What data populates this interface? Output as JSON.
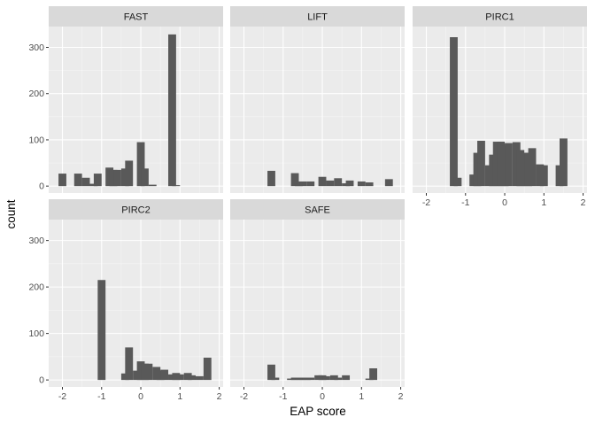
{
  "colors": {
    "panel_background": "#ebebeb",
    "grid_major": "#ffffff",
    "strip_background": "#d9d9d9",
    "bar_fill": "#595959",
    "text": "#1a1a1a",
    "tick_text": "#4d4d4d"
  },
  "chart_data": {
    "type": "bar",
    "style": "faceted histogram (facet_wrap, 3 columns, shared y-axis)",
    "xlabel": "EAP score",
    "ylabel": "count",
    "xlim": [
      -2.35,
      2.1
    ],
    "ylim": [
      -15,
      345
    ],
    "x_ticks": [
      -2,
      -1,
      0,
      1,
      2
    ],
    "y_ticks": [
      0,
      100,
      200,
      300
    ],
    "bin_width": 0.2,
    "grid": true,
    "facets": [
      {
        "name": "FAST",
        "bins": [
          {
            "x": -2.0,
            "count": 27
          },
          {
            "x": -1.6,
            "count": 27
          },
          {
            "x": -1.4,
            "count": 18
          },
          {
            "x": -1.2,
            "count": 5
          },
          {
            "x": -1.1,
            "count": 27
          },
          {
            "x": -0.8,
            "count": 40
          },
          {
            "x": -0.7,
            "count": 35
          },
          {
            "x": -0.6,
            "count": 35
          },
          {
            "x": -0.4,
            "count": 38
          },
          {
            "x": -0.3,
            "count": 55
          },
          {
            "x": 0.0,
            "count": 95
          },
          {
            "x": 0.1,
            "count": 38
          },
          {
            "x": 0.3,
            "count": 3
          },
          {
            "x": 0.8,
            "count": 328
          },
          {
            "x": 0.9,
            "count": 2
          }
        ]
      },
      {
        "name": "LIFT",
        "bins": [
          {
            "x": -1.3,
            "count": 33
          },
          {
            "x": -0.7,
            "count": 28
          },
          {
            "x": -0.6,
            "count": 5
          },
          {
            "x": -0.5,
            "count": 10
          },
          {
            "x": -0.3,
            "count": 10
          },
          {
            "x": 0.0,
            "count": 20
          },
          {
            "x": 0.2,
            "count": 12
          },
          {
            "x": 0.4,
            "count": 17
          },
          {
            "x": 0.6,
            "count": 6
          },
          {
            "x": 0.7,
            "count": 12
          },
          {
            "x": 1.0,
            "count": 10
          },
          {
            "x": 1.2,
            "count": 8
          },
          {
            "x": 1.7,
            "count": 15
          }
        ]
      },
      {
        "name": "PIRC1",
        "bins": [
          {
            "x": -1.3,
            "count": 322
          },
          {
            "x": -1.2,
            "count": 18
          },
          {
            "x": -0.8,
            "count": 25
          },
          {
            "x": -0.7,
            "count": 72
          },
          {
            "x": -0.6,
            "count": 98
          },
          {
            "x": -0.4,
            "count": 45
          },
          {
            "x": -0.3,
            "count": 68
          },
          {
            "x": -0.2,
            "count": 96
          },
          {
            "x": -0.1,
            "count": 96
          },
          {
            "x": 0.0,
            "count": 88
          },
          {
            "x": 0.1,
            "count": 93
          },
          {
            "x": 0.3,
            "count": 95
          },
          {
            "x": 0.4,
            "count": 78
          },
          {
            "x": 0.5,
            "count": 72
          },
          {
            "x": 0.6,
            "count": 72
          },
          {
            "x": 0.7,
            "count": 82
          },
          {
            "x": 0.9,
            "count": 47
          },
          {
            "x": 1.0,
            "count": 45
          },
          {
            "x": 1.4,
            "count": 45
          },
          {
            "x": 1.5,
            "count": 103
          }
        ]
      },
      {
        "name": "PIRC2",
        "bins": [
          {
            "x": -1.0,
            "count": 215
          },
          {
            "x": -0.4,
            "count": 14
          },
          {
            "x": -0.3,
            "count": 70
          },
          {
            "x": -0.1,
            "count": 20
          },
          {
            "x": 0.0,
            "count": 40
          },
          {
            "x": 0.1,
            "count": 35
          },
          {
            "x": 0.2,
            "count": 35
          },
          {
            "x": 0.4,
            "count": 28
          },
          {
            "x": 0.5,
            "count": 20
          },
          {
            "x": 0.6,
            "count": 22
          },
          {
            "x": 0.8,
            "count": 12
          },
          {
            "x": 0.9,
            "count": 15
          },
          {
            "x": 1.0,
            "count": 12
          },
          {
            "x": 1.2,
            "count": 15
          },
          {
            "x": 1.3,
            "count": 10
          },
          {
            "x": 1.5,
            "count": 8
          },
          {
            "x": 1.7,
            "count": 48
          }
        ]
      },
      {
        "name": "SAFE",
        "bins": [
          {
            "x": -1.3,
            "count": 33
          },
          {
            "x": -1.2,
            "count": 5
          },
          {
            "x": -0.8,
            "count": 3
          },
          {
            "x": -0.7,
            "count": 5
          },
          {
            "x": -0.6,
            "count": 5
          },
          {
            "x": -0.5,
            "count": 5
          },
          {
            "x": -0.4,
            "count": 5
          },
          {
            "x": -0.3,
            "count": 5
          },
          {
            "x": -0.1,
            "count": 10
          },
          {
            "x": 0.0,
            "count": 10
          },
          {
            "x": 0.1,
            "count": 8
          },
          {
            "x": 0.3,
            "count": 10
          },
          {
            "x": 0.4,
            "count": 5
          },
          {
            "x": 0.6,
            "count": 10
          },
          {
            "x": 1.2,
            "count": 3
          },
          {
            "x": 1.3,
            "count": 25
          }
        ]
      }
    ]
  }
}
